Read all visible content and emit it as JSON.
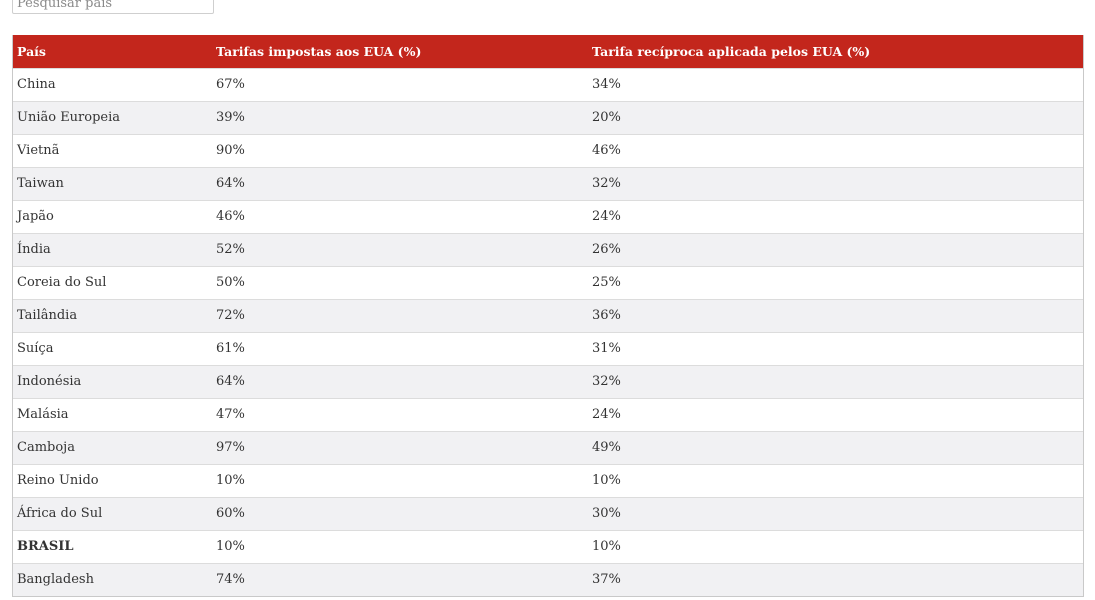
{
  "search": {
    "placeholder": "Pesquisar país"
  },
  "colors": {
    "header_background": "#c3261c",
    "header_text": "#ffffff",
    "row_alt_background": "#f1f1f3"
  },
  "table": {
    "headers": [
      "País",
      "Tarifas impostas aos EUA (%)",
      "Tarifa recíproca aplicada pelos EUA (%)"
    ],
    "rows": [
      {
        "country": "China",
        "imposed": "67%",
        "reciprocal": "34%",
        "bold": false
      },
      {
        "country": "União Europeia",
        "imposed": "39%",
        "reciprocal": "20%",
        "bold": false
      },
      {
        "country": "Vietnã",
        "imposed": "90%",
        "reciprocal": "46%",
        "bold": false
      },
      {
        "country": "Taiwan",
        "imposed": "64%",
        "reciprocal": "32%",
        "bold": false
      },
      {
        "country": "Japão",
        "imposed": "46%",
        "reciprocal": "24%",
        "bold": false
      },
      {
        "country": "Índia",
        "imposed": "52%",
        "reciprocal": "26%",
        "bold": false
      },
      {
        "country": "Coreia do Sul",
        "imposed": "50%",
        "reciprocal": "25%",
        "bold": false
      },
      {
        "country": "Tailândia",
        "imposed": "72%",
        "reciprocal": "36%",
        "bold": false
      },
      {
        "country": "Suíça",
        "imposed": "61%",
        "reciprocal": "31%",
        "bold": false
      },
      {
        "country": "Indonésia",
        "imposed": "64%",
        "reciprocal": "32%",
        "bold": false
      },
      {
        "country": "Malásia",
        "imposed": "47%",
        "reciprocal": "24%",
        "bold": false
      },
      {
        "country": "Camboja",
        "imposed": "97%",
        "reciprocal": "49%",
        "bold": false
      },
      {
        "country": "Reino Unido",
        "imposed": "10%",
        "reciprocal": "10%",
        "bold": false
      },
      {
        "country": "África do Sul",
        "imposed": "60%",
        "reciprocal": "30%",
        "bold": false
      },
      {
        "country": "BRASIL",
        "imposed": "10%",
        "reciprocal": "10%",
        "bold": true
      },
      {
        "country": "Bangladesh",
        "imposed": "74%",
        "reciprocal": "37%",
        "bold": false
      }
    ]
  }
}
